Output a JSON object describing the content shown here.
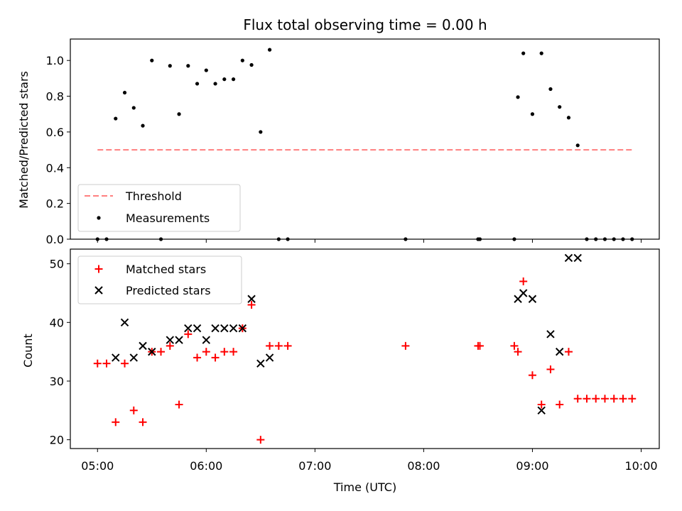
{
  "chart_data": [
    {
      "type": "scatter",
      "title": "Flux total observing time = 0.00 h",
      "ylabel": "Matched/Predicted stars",
      "xlabel": "",
      "xlim": [
        "04:45",
        "10:10"
      ],
      "ylim": [
        0,
        1.12
      ],
      "yticks": [
        "0.0",
        "0.2",
        "0.4",
        "0.6",
        "0.8",
        "1.0"
      ],
      "legend_position": "lower-left",
      "threshold": {
        "name": "Threshold",
        "value": 0.5,
        "x_start": "05:00",
        "x_end": "09:55",
        "color": "#ff7f7f",
        "style": "dashed"
      },
      "series": [
        {
          "name": "Measurements",
          "marker": "dot",
          "color": "#000000",
          "points": [
            [
              "05:00",
              0.0
            ],
            [
              "05:05",
              0.0
            ],
            [
              "05:10",
              0.675
            ],
            [
              "05:15",
              0.82
            ],
            [
              "05:20",
              0.735
            ],
            [
              "05:25",
              0.635
            ],
            [
              "05:30",
              1.0
            ],
            [
              "05:35",
              0.0
            ],
            [
              "05:40",
              0.97
            ],
            [
              "05:45",
              0.7
            ],
            [
              "05:50",
              0.97
            ],
            [
              "05:55",
              0.87
            ],
            [
              "06:00",
              0.945
            ],
            [
              "06:05",
              0.87
            ],
            [
              "06:10",
              0.895
            ],
            [
              "06:15",
              0.895
            ],
            [
              "06:20",
              1.0
            ],
            [
              "06:25",
              0.975
            ],
            [
              "06:30",
              0.6
            ],
            [
              "06:35",
              1.06
            ],
            [
              "06:40",
              0.0
            ],
            [
              "06:45",
              0.0
            ],
            [
              "07:50",
              0.0
            ],
            [
              "08:30",
              0.0
            ],
            [
              "08:31",
              0.0
            ],
            [
              "08:50",
              0.0
            ],
            [
              "08:52",
              0.795
            ],
            [
              "08:55",
              1.04
            ],
            [
              "09:00",
              0.7
            ],
            [
              "09:05",
              1.04
            ],
            [
              "09:10",
              0.84
            ],
            [
              "09:15",
              0.74
            ],
            [
              "09:20",
              0.68
            ],
            [
              "09:25",
              0.525
            ],
            [
              "09:30",
              0.0
            ],
            [
              "09:35",
              0.0
            ],
            [
              "09:40",
              0.0
            ],
            [
              "09:45",
              0.0
            ],
            [
              "09:50",
              0.0
            ],
            [
              "09:55",
              0.0
            ]
          ]
        }
      ]
    },
    {
      "type": "scatter",
      "title": "",
      "ylabel": "Count",
      "xlabel": "Time (UTC)",
      "xlim": [
        "04:45",
        "10:10"
      ],
      "ylim": [
        18.5,
        52.5
      ],
      "yticks": [
        "20",
        "30",
        "40",
        "50"
      ],
      "xticks": [
        "05:00",
        "06:00",
        "07:00",
        "08:00",
        "09:00",
        "10:00"
      ],
      "legend_position": "top-left",
      "series": [
        {
          "name": "Matched stars",
          "marker": "plus",
          "color": "#ff0000",
          "points": [
            [
              "05:00",
              33
            ],
            [
              "05:05",
              33
            ],
            [
              "05:10",
              23
            ],
            [
              "05:15",
              33
            ],
            [
              "05:20",
              25
            ],
            [
              "05:25",
              23
            ],
            [
              "05:30",
              35
            ],
            [
              "05:35",
              35
            ],
            [
              "05:40",
              36
            ],
            [
              "05:45",
              26
            ],
            [
              "05:50",
              38
            ],
            [
              "05:55",
              34
            ],
            [
              "06:00",
              35
            ],
            [
              "06:05",
              34
            ],
            [
              "06:10",
              35
            ],
            [
              "06:15",
              35
            ],
            [
              "06:20",
              39
            ],
            [
              "06:25",
              43
            ],
            [
              "06:30",
              20
            ],
            [
              "06:35",
              36
            ],
            [
              "06:40",
              36
            ],
            [
              "06:45",
              36
            ],
            [
              "07:50",
              36
            ],
            [
              "08:30",
              36
            ],
            [
              "08:31",
              36
            ],
            [
              "08:50",
              36
            ],
            [
              "08:52",
              35
            ],
            [
              "08:55",
              47
            ],
            [
              "09:00",
              31
            ],
            [
              "09:05",
              26
            ],
            [
              "09:10",
              32
            ],
            [
              "09:15",
              26
            ],
            [
              "09:20",
              35
            ],
            [
              "09:25",
              27
            ],
            [
              "09:30",
              27
            ],
            [
              "09:35",
              27
            ],
            [
              "09:40",
              27
            ],
            [
              "09:45",
              27
            ],
            [
              "09:50",
              27
            ],
            [
              "09:55",
              27
            ]
          ]
        },
        {
          "name": "Predicted stars",
          "marker": "x",
          "color": "#000000",
          "points": [
            [
              "05:10",
              34
            ],
            [
              "05:15",
              40
            ],
            [
              "05:20",
              34
            ],
            [
              "05:25",
              36
            ],
            [
              "05:30",
              35
            ],
            [
              "05:40",
              37
            ],
            [
              "05:45",
              37
            ],
            [
              "05:50",
              39
            ],
            [
              "05:55",
              39
            ],
            [
              "06:00",
              37
            ],
            [
              "06:05",
              39
            ],
            [
              "06:10",
              39
            ],
            [
              "06:15",
              39
            ],
            [
              "06:20",
              39
            ],
            [
              "06:25",
              44
            ],
            [
              "06:30",
              33
            ],
            [
              "06:35",
              34
            ],
            [
              "08:52",
              44
            ],
            [
              "08:55",
              45
            ],
            [
              "09:00",
              44
            ],
            [
              "09:05",
              25
            ],
            [
              "09:10",
              38
            ],
            [
              "09:15",
              35
            ],
            [
              "09:20",
              51
            ],
            [
              "09:25",
              51
            ]
          ]
        }
      ]
    }
  ]
}
